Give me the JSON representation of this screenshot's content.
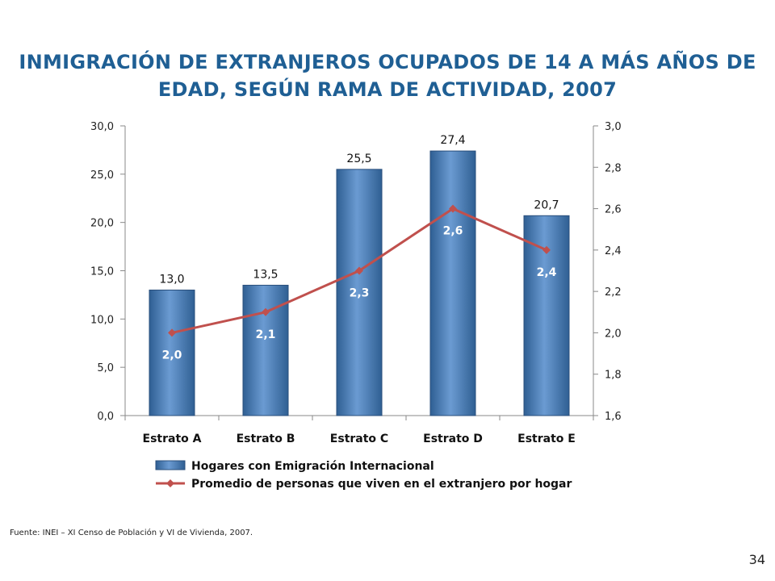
{
  "title": "INMIGRACIÓN DE EXTRANJEROS OCUPADOS DE 14 A MÁS AÑOS DE EDAD, SEGÚN RAMA DE ACTIVIDAD, 2007",
  "source": "Fuente: INEI – XI Censo de Población y VI de Vivienda, 2007.",
  "page_number": "34",
  "colors": {
    "title": "#1f5f94",
    "bar": "#4f81bd",
    "line": "#c0504d"
  },
  "chart_data": {
    "type": "bar",
    "categories": [
      "Estrato A",
      "Estrato B",
      "Estrato C",
      "Estrato D",
      "Estrato E"
    ],
    "series": [
      {
        "name": "Hogares con Emigración Internacional",
        "type": "bar",
        "axis": "left",
        "values": [
          13.0,
          13.5,
          25.5,
          27.4,
          20.7
        ],
        "labels": [
          "13,0",
          "13,5",
          "25,5",
          "27,4",
          "20,7"
        ]
      },
      {
        "name": "Promedio de personas que viven en el extranjero por hogar",
        "type": "line",
        "axis": "right",
        "values": [
          2.0,
          2.1,
          2.3,
          2.6,
          2.4
        ],
        "labels": [
          "2,0",
          "2,1",
          "2,3",
          "2,6",
          "2,4"
        ]
      }
    ],
    "y_left": {
      "ylim": [
        0,
        30
      ],
      "ticks": [
        0,
        5,
        10,
        15,
        20,
        25,
        30
      ],
      "tick_labels": [
        "0,0",
        "5,0",
        "10,0",
        "15,0",
        "20,0",
        "25,0",
        "30,0"
      ]
    },
    "y_right": {
      "ylim": [
        1.6,
        3.0
      ],
      "ticks": [
        1.6,
        1.8,
        2.0,
        2.2,
        2.4,
        2.6,
        2.8,
        3.0
      ],
      "tick_labels": [
        "1,6",
        "1,8",
        "2,0",
        "2,2",
        "2,4",
        "2,6",
        "2,8",
        "3,0"
      ]
    },
    "grid": false,
    "legend": "bottom"
  }
}
